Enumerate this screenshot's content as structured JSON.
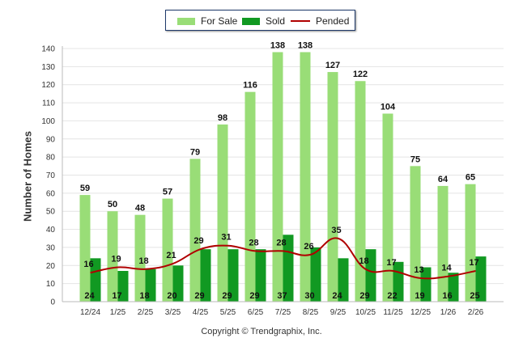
{
  "chart_data": {
    "type": "bar",
    "title": "",
    "xlabel": "",
    "ylabel": "Number of Homes",
    "ylim": [
      0,
      140
    ],
    "yticks": [
      0,
      10,
      20,
      30,
      40,
      50,
      60,
      70,
      80,
      90,
      100,
      110,
      120,
      130,
      140
    ],
    "grid": true,
    "legend_position": "top-center",
    "categories": [
      "12/24",
      "1/25",
      "2/25",
      "3/25",
      "4/25",
      "5/25",
      "6/25",
      "7/25",
      "8/25",
      "9/25",
      "10/25",
      "11/25",
      "12/25",
      "1/26",
      "2/26"
    ],
    "series": [
      {
        "name": "For Sale",
        "kind": "bar",
        "color": "#99dd77",
        "values": [
          59,
          50,
          48,
          57,
          79,
          98,
          116,
          138,
          138,
          127,
          122,
          104,
          75,
          64,
          65
        ]
      },
      {
        "name": "Sold",
        "kind": "bar",
        "color": "#119922",
        "values": [
          24,
          17,
          18,
          20,
          29,
          29,
          29,
          37,
          30,
          24,
          29,
          22,
          19,
          16,
          25
        ]
      },
      {
        "name": "Pended",
        "kind": "line",
        "color": "#b00000",
        "values": [
          16,
          19,
          18,
          21,
          29,
          31,
          28,
          28,
          26,
          35,
          18,
          17,
          13,
          14,
          17
        ]
      }
    ]
  },
  "legend": {
    "for_sale": "For Sale",
    "sold": "Sold",
    "pended": "Pended"
  },
  "footer": {
    "copyright": "Copyright © Trendgraphix, Inc."
  }
}
